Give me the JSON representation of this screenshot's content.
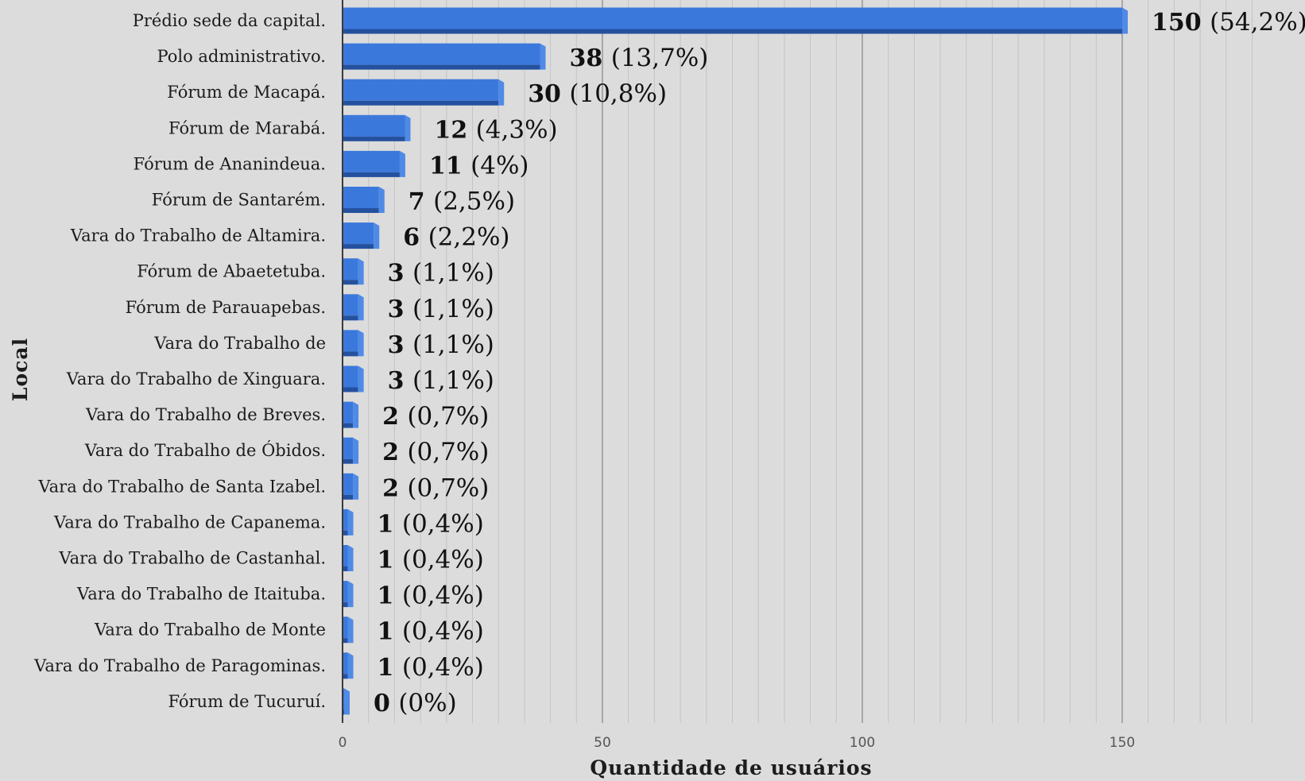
{
  "chart_data": {
    "type": "bar",
    "orientation": "horizontal",
    "title": "",
    "xlabel": "Quantidade de usuários",
    "ylabel": "Local",
    "xlim": [
      0,
      180
    ],
    "xticks": [
      0,
      50,
      100,
      150
    ],
    "xtick_labels": [
      "0",
      "50",
      "100",
      "150"
    ],
    "grid": true,
    "legend": "none",
    "bar_color": "#3b78dc",
    "bar_shade_color": "#24519e",
    "background_color": "#dcdcdc",
    "categories": [
      "Prédio sede da capital.",
      "Polo administrativo.",
      "Fórum de Macapá.",
      "Fórum de Marabá.",
      "Fórum de Ananindeua.",
      "Fórum de Santarém.",
      "Vara do Trabalho de Altamira.",
      "Fórum de Abaetetuba.",
      "Fórum de Parauapebas.",
      "Vara do Trabalho de",
      "Vara do Trabalho de Xinguara.",
      "Vara do Trabalho de Breves.",
      "Vara do Trabalho de Óbidos.",
      "Vara do Trabalho de Santa Izabel.",
      "Vara do Trabalho de Capanema.",
      "Vara do Trabalho de Castanhal.",
      "Vara do Trabalho de Itaituba.",
      "Vara do Trabalho de Monte",
      "Vara do Trabalho de Paragominas.",
      "Fórum de Tucuruí."
    ],
    "values": [
      150,
      38,
      30,
      12,
      11,
      7,
      6,
      3,
      3,
      3,
      3,
      2,
      2,
      2,
      1,
      1,
      1,
      1,
      1,
      0
    ],
    "value_labels": [
      "150",
      "38",
      "30",
      "12",
      "11",
      "7",
      "6",
      "3",
      "3",
      "3",
      "3",
      "2",
      "2",
      "2",
      "1",
      "1",
      "1",
      "1",
      "1",
      "0"
    ],
    "percent_labels": [
      "(54,2%)",
      "(13,7%)",
      "(10,8%)",
      "(4,3%)",
      "(4%)",
      "(2,5%)",
      "(2,2%)",
      "(1,1%)",
      "(1,1%)",
      "(1,1%)",
      "(1,1%)",
      "(0,7%)",
      "(0,7%)",
      "(0,7%)",
      "(0,4%)",
      "(0,4%)",
      "(0,4%)",
      "(0,4%)",
      "(0,4%)",
      "(0%)"
    ]
  }
}
